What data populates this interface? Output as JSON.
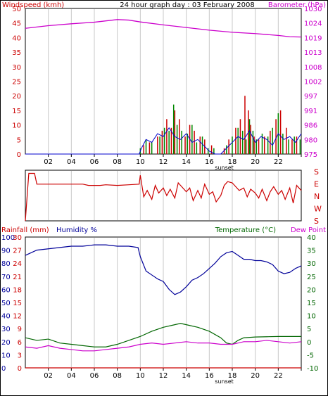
{
  "colors": {
    "wind": "#cc0000",
    "baro": "#cc00cc",
    "humidity": "#000099",
    "temperature": "#006600",
    "dewpoint": "#cc00cc",
    "rain": "#cc0000",
    "gust": "#008800",
    "avgwind": "#0000cc",
    "grid": "#c8c8c8",
    "dirline": "#cc0000",
    "tempaxis": "#006600"
  },
  "chart_data": [
    {
      "type": "line",
      "id": "wind-baro",
      "title": "24 hour graph day : 03 February 2008",
      "ylabel_left": "Windspeed (kmh)",
      "ylabel_right": "Barometer (hPa)",
      "x_ticks": [
        "02",
        "04",
        "06",
        "08",
        "10",
        "12",
        "14",
        "16",
        "18",
        "20",
        "22",
        ""
      ],
      "sunset_label": "sunset",
      "sunset_x": 17.3,
      "xlim": [
        0,
        24
      ],
      "ylim_left": [
        0,
        50
      ],
      "y_ticks_left": [
        "0",
        "5",
        "10",
        "15",
        "20",
        "25",
        "30",
        "35",
        "40",
        "45",
        "50"
      ],
      "ylim_right": [
        975,
        1030
      ],
      "y_ticks_right": [
        "975",
        "980",
        "986",
        "991",
        "997",
        "1002",
        "1008",
        "1013",
        "1019",
        "1024",
        "1030"
      ],
      "grid": true,
      "series": [
        {
          "key": "baro",
          "axis": "right",
          "x": [
            0,
            2,
            4,
            6,
            8,
            9,
            10,
            12,
            14,
            16,
            18,
            20,
            22,
            23,
            24
          ],
          "y": [
            1022.5,
            1023.5,
            1024.2,
            1024.8,
            1025.8,
            1025.6,
            1024.9,
            1023.8,
            1022.8,
            1021.8,
            1021.0,
            1020.5,
            1019.8,
            1019.3,
            1019.2
          ]
        },
        {
          "key": "wind",
          "axis": "left",
          "style": "bars",
          "x": [
            10.3,
            10.8,
            11.5,
            11.9,
            12.3,
            12.7,
            13.0,
            13.4,
            13.9,
            14.3,
            14.7,
            15.2,
            15.6,
            16.2,
            17.3,
            17.7,
            18.3,
            18.7,
            19.1,
            19.4,
            19.6,
            19.9,
            20.3,
            20.8,
            21.3,
            21.8,
            22.2,
            22.7,
            23.2,
            23.6
          ],
          "y": [
            3,
            4,
            6,
            8,
            12,
            9,
            15,
            12,
            6,
            10,
            8,
            6,
            5,
            3,
            2,
            5,
            9,
            12,
            20,
            15,
            10,
            6,
            5,
            6,
            8,
            12,
            15,
            9,
            5,
            6
          ]
        },
        {
          "key": "gust",
          "axis": "left",
          "style": "bars",
          "x": [
            10.0,
            10.5,
            11.0,
            11.7,
            12.1,
            12.5,
            12.9,
            13.2,
            13.6,
            14.1,
            14.5,
            14.9,
            15.4,
            15.9,
            16.4,
            17.5,
            18.0,
            18.5,
            18.9,
            19.2,
            19.5,
            19.8,
            20.1,
            20.6,
            21.1,
            21.5,
            22.0,
            22.4,
            22.9,
            23.4,
            23.9
          ],
          "y": [
            2,
            5,
            4,
            6,
            9,
            8,
            17,
            10,
            8,
            7,
            10,
            4,
            6,
            2,
            2,
            3,
            6,
            9,
            8,
            5,
            12,
            8,
            5,
            7,
            6,
            9,
            14,
            7,
            5,
            6,
            5
          ]
        },
        {
          "key": "avgwind",
          "axis": "left",
          "x": [
            0,
            9.9,
            10.1,
            10.5,
            11.0,
            11.5,
            12.0,
            12.5,
            13.0,
            13.5,
            14.0,
            14.5,
            15.0,
            15.5,
            16.0,
            16.5,
            17.0,
            17.5,
            18.0,
            18.5,
            19.0,
            19.5,
            20.0,
            20.5,
            21.0,
            21.5,
            22.0,
            22.5,
            23.0,
            23.5,
            24.0
          ],
          "y": [
            0,
            0,
            2,
            5,
            4,
            7,
            6,
            9,
            6,
            5,
            7,
            4,
            5,
            3,
            1,
            0,
            0,
            2,
            4,
            6,
            5,
            8,
            4,
            6,
            5,
            3,
            7,
            5,
            6,
            4,
            7
          ]
        }
      ]
    },
    {
      "type": "line",
      "id": "wind-direction",
      "ylabel_right_letters": [
        "S",
        "E",
        "N",
        "W",
        "S"
      ],
      "xlim": [
        0,
        24
      ],
      "ylim": [
        0,
        4
      ],
      "grid": true,
      "series": [
        {
          "key": "dirline",
          "x": [
            0,
            0.3,
            0.8,
            1.0,
            3.0,
            5.0,
            5.5,
            6.5,
            7.0,
            8.0,
            9.0,
            9.9,
            10.0,
            10.3,
            10.6,
            11.0,
            11.3,
            11.6,
            12.0,
            12.3,
            12.6,
            13.0,
            13.3,
            13.6,
            14.0,
            14.3,
            14.6,
            15.0,
            15.3,
            15.6,
            16.0,
            16.3,
            16.6,
            17.0,
            17.3,
            17.6,
            18.0,
            18.3,
            18.6,
            19.0,
            19.3,
            19.6,
            20.0,
            20.3,
            20.6,
            21.0,
            21.3,
            21.6,
            22.0,
            22.3,
            22.6,
            23.0,
            23.3,
            23.6,
            24.0
          ],
          "y": [
            0,
            3.75,
            3.75,
            2.9,
            2.9,
            2.9,
            2.8,
            2.8,
            2.85,
            2.8,
            2.85,
            2.9,
            3.6,
            1.9,
            2.4,
            1.7,
            2.8,
            2.2,
            2.6,
            2.0,
            2.5,
            1.8,
            3.0,
            2.7,
            2.3,
            2.6,
            1.6,
            2.4,
            1.8,
            2.9,
            2.1,
            2.3,
            1.5,
            2.0,
            2.8,
            3.1,
            3.0,
            2.7,
            2.4,
            2.6,
            1.9,
            2.5,
            2.2,
            1.8,
            2.5,
            1.6,
            2.3,
            2.7,
            2.1,
            2.4,
            1.7,
            2.6,
            1.4,
            2.8,
            2.4
          ]
        }
      ]
    },
    {
      "type": "line",
      "id": "temp-hum",
      "ylabel_left_a": "Rainfall (mm)",
      "ylabel_left_b": "Humidity %",
      "ylabel_right": "Temperature (°C)",
      "ylabel_right_b": "Dew Point",
      "x_ticks": [
        "02",
        "04",
        "06",
        "08",
        "10",
        "12",
        "14",
        "16",
        "18",
        "20",
        "22",
        ""
      ],
      "sunset_label": "sunset",
      "sunset_x": 17.3,
      "xlim": [
        0,
        24
      ],
      "ylim_left": [
        0,
        100
      ],
      "y_ticks_hum": [
        "0",
        "10",
        "20",
        "30",
        "40",
        "50",
        "60",
        "70",
        "80",
        "90",
        "100"
      ],
      "y_ticks_rain": [
        "0",
        "3",
        "6",
        "9",
        "12",
        "15",
        "18",
        "21",
        "24",
        "27",
        "30"
      ],
      "ylim_right": [
        -10,
        40
      ],
      "y_ticks_right": [
        "-10",
        "-5",
        "0",
        "5",
        "10",
        "15",
        "20",
        "25",
        "30",
        "35",
        "40"
      ],
      "grid": true,
      "series": [
        {
          "key": "humidity",
          "axis": "left",
          "x": [
            0,
            0.5,
            1,
            2,
            3,
            4,
            5,
            6,
            7,
            8,
            9,
            9.8,
            10,
            10.5,
            11,
            11.5,
            12,
            12.5,
            13,
            13.5,
            14,
            14.5,
            15,
            15.5,
            16,
            16.5,
            17,
            17.5,
            18,
            18.5,
            19,
            19.5,
            20,
            20.5,
            21,
            21.5,
            22,
            22.5,
            23,
            23.5,
            24
          ],
          "y": [
            86,
            88,
            90,
            91,
            92,
            93,
            93,
            94,
            94,
            93,
            93,
            92,
            85,
            74,
            71,
            68,
            66,
            60,
            56,
            58,
            62,
            67,
            69,
            72,
            76,
            80,
            85,
            88,
            89,
            86,
            83,
            83,
            82,
            82,
            81,
            79,
            74,
            72,
            73,
            76,
            78
          ]
        },
        {
          "key": "temperature",
          "axis": "right",
          "x": [
            0,
            1,
            2,
            3,
            4,
            5,
            6,
            7,
            8,
            9,
            10,
            11,
            12,
            13,
            13.5,
            14,
            15,
            16,
            17,
            17.5,
            18,
            18.5,
            19,
            20,
            21,
            22,
            23,
            24
          ],
          "y": [
            1.5,
            0.5,
            1.0,
            -0.5,
            -1.0,
            -1.5,
            -2.0,
            -2.0,
            -1.0,
            0.5,
            2.0,
            4.0,
            5.5,
            6.5,
            7.0,
            6.5,
            5.5,
            4.0,
            1.5,
            -0.5,
            -1.0,
            0.5,
            1.5,
            1.8,
            1.9,
            2.0,
            2.0,
            2.0
          ]
        },
        {
          "key": "dewpoint",
          "axis": "right",
          "x": [
            0,
            1,
            2,
            3,
            4,
            5,
            6,
            7,
            8,
            9,
            10,
            11,
            12,
            13,
            14,
            15,
            16,
            17,
            18,
            18.5,
            19,
            20,
            21,
            22,
            23,
            24
          ],
          "y": [
            -2.0,
            -2.5,
            -1.5,
            -2.5,
            -3.0,
            -3.5,
            -3.5,
            -3.0,
            -2.5,
            -2.0,
            -1.0,
            -0.5,
            -1.0,
            -0.5,
            0.0,
            -0.5,
            -0.5,
            -1.0,
            -1.0,
            -0.5,
            0.0,
            0.0,
            0.5,
            0.0,
            -0.5,
            0.0
          ]
        },
        {
          "key": "rain",
          "axis": "left",
          "x": [
            0,
            24
          ],
          "y": [
            0,
            0
          ]
        }
      ]
    }
  ]
}
